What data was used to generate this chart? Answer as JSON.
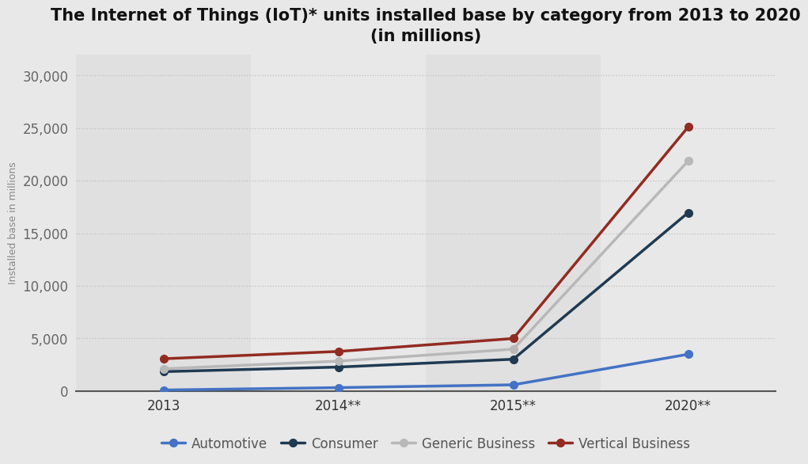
{
  "title": "The Internet of Things (IoT)* units installed base by category from 2013 to 2020\n(in millions)",
  "ylabel": "Installed base in millions",
  "x_labels": [
    "2013",
    "2014**",
    "2015**",
    "2020**"
  ],
  "x_positions": [
    0,
    1,
    2,
    3
  ],
  "series": [
    {
      "label": "Automotive",
      "values": [
        96,
        322,
        589,
        3492
      ],
      "color": "#4472c4",
      "marker": "o",
      "linewidth": 2.5,
      "markersize": 7
    },
    {
      "label": "Consumer",
      "values": [
        1842,
        2277,
        3021,
        16954
      ],
      "color": "#1f3a52",
      "marker": "o",
      "linewidth": 2.5,
      "markersize": 7
    },
    {
      "label": "Generic Business",
      "values": [
        2113,
        2842,
        3979,
        21865
      ],
      "color": "#b8b8b8",
      "marker": "o",
      "linewidth": 2.5,
      "markersize": 7
    },
    {
      "label": "Vertical Business",
      "values": [
        3068,
        3761,
        4993,
        25099
      ],
      "color": "#922b21",
      "marker": "o",
      "linewidth": 2.5,
      "markersize": 7
    }
  ],
  "ylim": [
    0,
    32000
  ],
  "yticks": [
    0,
    5000,
    10000,
    15000,
    20000,
    25000,
    30000
  ],
  "ytick_labels": [
    "0",
    "5,000",
    "10,000",
    "15,000",
    "20,000",
    "25,000",
    "30,000"
  ],
  "background_color": "#e8e8e8",
  "col_colors": [
    "#e0e0e0",
    "#e8e8e8",
    "#e0e0e0",
    "#e8e8e8"
  ],
  "grid_color": "#c0c0c0",
  "title_fontsize": 15,
  "axis_label_fontsize": 9,
  "tick_fontsize": 12,
  "legend_fontsize": 12
}
